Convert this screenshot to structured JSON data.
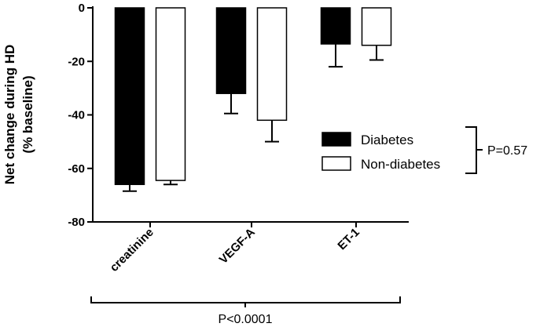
{
  "chart_data": {
    "type": "bar",
    "ylabel_lines": [
      "Net change during HD",
      "(% baseline)"
    ],
    "categories": [
      "creatinine",
      "VEGF-A",
      "ET-1"
    ],
    "ylim": [
      -80,
      0
    ],
    "yticks": [
      0,
      -20,
      -40,
      -60,
      -80
    ],
    "ytick_labels": [
      "0",
      "-20",
      "-40",
      "-60",
      "-80"
    ],
    "series": [
      {
        "name": "Diabetes",
        "values": [
          -66,
          -32,
          -13.5
        ],
        "errors": [
          2.5,
          7.5,
          8.5
        ],
        "color": "#000000"
      },
      {
        "name": "Non-diabetes",
        "values": [
          -64.5,
          -42,
          -14
        ],
        "errors": [
          1.5,
          8,
          5.5
        ],
        "color": "#ffffff"
      }
    ],
    "legend": {
      "placement": "right",
      "entries": [
        "Diabetes",
        "Non-diabetes"
      ]
    },
    "annotations": {
      "legend_p": "P=0.57",
      "category_p": "P<0.0001"
    },
    "grid": false
  }
}
